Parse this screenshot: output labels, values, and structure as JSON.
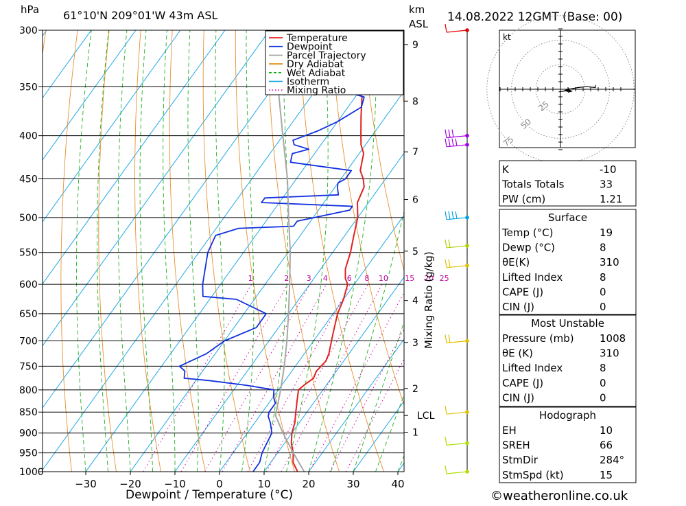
{
  "header": {
    "hpa_label": "hPa",
    "location": "61°10'N  209°01'W  43m  ASL",
    "km_label": "km",
    "asl_label": "ASL",
    "datetime": "14.08.2022  12GMT  (Base: 00)"
  },
  "footer": {
    "xaxis_title": "Dewpoint / Temperature (°C)",
    "mixing_ratio_title": "Mixing Ratio (g/kg)",
    "copyright": "©weatheronline.co.uk"
  },
  "chart_data": {
    "type": "skew-t",
    "title": "61°10'N 209°01'W 43m ASL",
    "xlabel": "Dewpoint / Temperature (°C)",
    "ylabel": "hPa",
    "xlim": [
      -40,
      40
    ],
    "pressure_range": [
      1000,
      300
    ],
    "pressure_ticks": [
      300,
      350,
      400,
      450,
      500,
      550,
      600,
      650,
      700,
      750,
      800,
      850,
      900,
      950,
      1000
    ],
    "temperature_ticks": [
      -30,
      -20,
      -10,
      0,
      10,
      20,
      30,
      40
    ],
    "km_ticks": [
      {
        "label": "9",
        "p": 312
      },
      {
        "label": "8",
        "p": 364
      },
      {
        "label": "7",
        "p": 418
      },
      {
        "label": "6",
        "p": 476
      },
      {
        "label": "5",
        "p": 548
      },
      {
        "label": "4",
        "p": 627
      },
      {
        "label": "3",
        "p": 703
      },
      {
        "label": "2",
        "p": 797
      },
      {
        "label": "LCL",
        "p": 858
      },
      {
        "label": "1",
        "p": 898
      }
    ],
    "mixing_ratio_labels": [
      "1",
      "2",
      "3",
      "4",
      "6",
      "8",
      "10",
      "15",
      "20",
      "25"
    ],
    "mixing_ratio_values": [
      1,
      2,
      3,
      4,
      6,
      8,
      10,
      15,
      20,
      25
    ],
    "legend": [
      {
        "name": "Temperature",
        "color": "#e00000",
        "dash": "solid"
      },
      {
        "name": "Dewpoint",
        "color": "#0030e0",
        "dash": "solid"
      },
      {
        "name": "Parcel Trajectory",
        "color": "#a0a0a0",
        "dash": "solid"
      },
      {
        "name": "Dry Adiabat",
        "color": "#e08000",
        "dash": "solid"
      },
      {
        "name": "Wet Adiabat",
        "color": "#00b000",
        "dash": "dashed"
      },
      {
        "name": "Isotherm",
        "color": "#00a0e0",
        "dash": "solid"
      },
      {
        "name": "Mixing Ratio",
        "color": "#d000a0",
        "dash": "dotted"
      }
    ],
    "series": [
      {
        "name": "Temperature",
        "points": [
          [
            1000,
            17.5
          ],
          [
            975,
            15
          ],
          [
            950,
            13.5
          ],
          [
            925,
            11.5
          ],
          [
            900,
            10
          ],
          [
            875,
            9
          ],
          [
            850,
            7.5
          ],
          [
            825,
            6
          ],
          [
            800,
            4.5
          ],
          [
            790,
            5
          ],
          [
            775,
            6
          ],
          [
            760,
            5.5
          ],
          [
            740,
            6
          ],
          [
            725,
            5.5
          ],
          [
            700,
            4
          ],
          [
            675,
            2.5
          ],
          [
            650,
            1
          ],
          [
            625,
            0
          ],
          [
            600,
            -1.5
          ],
          [
            590,
            -3
          ],
          [
            575,
            -4.5
          ],
          [
            550,
            -6
          ],
          [
            525,
            -8
          ],
          [
            500,
            -10
          ],
          [
            480,
            -12.5
          ],
          [
            470,
            -13
          ],
          [
            460,
            -13.5
          ],
          [
            450,
            -15
          ],
          [
            440,
            -17
          ],
          [
            430,
            -18
          ],
          [
            420,
            -19
          ],
          [
            410,
            -21
          ],
          [
            400,
            -22.5
          ],
          [
            380,
            -25.5
          ],
          [
            360,
            -28.5
          ],
          [
            350,
            -31
          ],
          [
            340,
            -33
          ],
          [
            325,
            -36
          ],
          [
            300,
            -40
          ]
        ]
      },
      {
        "name": "Dewpoint",
        "points": [
          [
            1000,
            7.5
          ],
          [
            975,
            7.5
          ],
          [
            950,
            6.5
          ],
          [
            925,
            6
          ],
          [
            900,
            5.5
          ],
          [
            875,
            3.5
          ],
          [
            860,
            2
          ],
          [
            850,
            1.5
          ],
          [
            830,
            1.5
          ],
          [
            815,
            0
          ],
          [
            800,
            -1
          ],
          [
            790,
            -8
          ],
          [
            780,
            -17
          ],
          [
            775,
            -23
          ],
          [
            760,
            -24
          ],
          [
            750,
            -26
          ],
          [
            725,
            -22
          ],
          [
            700,
            -20
          ],
          [
            675,
            -15
          ],
          [
            650,
            -15
          ],
          [
            625,
            -24
          ],
          [
            620,
            -32
          ],
          [
            600,
            -34
          ],
          [
            550,
            -38
          ],
          [
            525,
            -39
          ],
          [
            515,
            -35
          ],
          [
            512,
            -23
          ],
          [
            505,
            -23
          ],
          [
            490,
            -13
          ],
          [
            485,
            -13
          ],
          [
            480,
            -34
          ],
          [
            474,
            -34
          ],
          [
            470,
            -18
          ],
          [
            460,
            -19.5
          ],
          [
            455,
            -20
          ],
          [
            450,
            -19
          ],
          [
            440,
            -19
          ],
          [
            430,
            -34
          ],
          [
            420,
            -35
          ],
          [
            415,
            -32
          ],
          [
            410,
            -36
          ],
          [
            405,
            -37
          ],
          [
            395,
            -33
          ],
          [
            385,
            -30
          ],
          [
            370,
            -27
          ],
          [
            360,
            -28
          ],
          [
            350,
            -37.5
          ],
          [
            330,
            -42
          ],
          [
            320,
            -46
          ],
          [
            310,
            -46
          ],
          [
            305,
            -44
          ],
          [
            300,
            -44
          ]
        ]
      },
      {
        "name": "Parcel Trajectory",
        "points": [
          [
            1000,
            19
          ],
          [
            950,
            13.5
          ],
          [
            900,
            8
          ],
          [
            858,
            3.5
          ],
          [
            800,
            0.5
          ],
          [
            750,
            -2.5
          ],
          [
            700,
            -6
          ],
          [
            650,
            -10
          ],
          [
            600,
            -14.5
          ],
          [
            550,
            -19.5
          ],
          [
            500,
            -25.5
          ],
          [
            450,
            -32
          ],
          [
            400,
            -40
          ],
          [
            350,
            -49
          ],
          [
            300,
            -60
          ]
        ]
      }
    ],
    "wind_barbs": [
      {
        "p": 300,
        "color": "#e00000",
        "flags": "pennant"
      },
      {
        "p": 400,
        "color": "#a000e0",
        "flags": "3 barbs"
      },
      {
        "p": 410,
        "color": "#a000e0",
        "flags": "4 barbs"
      },
      {
        "p": 500,
        "color": "#00a0e0",
        "flags": "4 barbs"
      },
      {
        "p": 540,
        "color": "#b0d000",
        "flags": "2 barbs"
      },
      {
        "p": 570,
        "color": "#e0c000",
        "flags": "2 barbs"
      },
      {
        "p": 700,
        "color": "#e0c000",
        "flags": "2 barbs"
      },
      {
        "p": 850,
        "color": "#e0c000",
        "flags": "1 barb"
      },
      {
        "p": 925,
        "color": "#b0e000",
        "flags": "1 barb"
      },
      {
        "p": 1000,
        "color": "#b0e000",
        "flags": "1 barb"
      }
    ],
    "hodograph": {
      "unit_label": "kt",
      "ring_labels": [
        "25",
        "50",
        "75"
      ],
      "points_kt": [
        [
          -2,
          -3
        ],
        [
          5,
          -2
        ],
        [
          10,
          0
        ],
        [
          20,
          2
        ],
        [
          30,
          3
        ],
        [
          40,
          2
        ],
        [
          40,
          5
        ]
      ]
    }
  },
  "indices": {
    "K": {
      "label": "K",
      "value": "-10"
    },
    "TT": {
      "label": "Totals Totals",
      "value": "33"
    },
    "PW": {
      "label": "PW (cm)",
      "value": "1.21"
    }
  },
  "surface": {
    "title": "Surface",
    "rows": [
      {
        "label": "Temp (°C)",
        "value": "19"
      },
      {
        "label": "Dewp (°C)",
        "value": "8"
      },
      {
        "label": "θE(K)",
        "value": "310"
      },
      {
        "label": "Lifted Index",
        "value": "8"
      },
      {
        "label": "CAPE (J)",
        "value": "0"
      },
      {
        "label": "CIN (J)",
        "value": "0"
      }
    ]
  },
  "most_unstable": {
    "title": "Most Unstable",
    "rows": [
      {
        "label": "Pressure (mb)",
        "value": "1008"
      },
      {
        "label": "θE (K)",
        "value": "310"
      },
      {
        "label": "Lifted Index",
        "value": "8"
      },
      {
        "label": "CAPE (J)",
        "value": "0"
      },
      {
        "label": "CIN (J)",
        "value": "0"
      }
    ]
  },
  "hodograph_table": {
    "title": "Hodograph",
    "rows": [
      {
        "label": "EH",
        "value": "10"
      },
      {
        "label": "SREH",
        "value": "66"
      },
      {
        "label": "StmDir",
        "value": "284°"
      },
      {
        "label": "StmSpd (kt)",
        "value": "15"
      }
    ]
  }
}
